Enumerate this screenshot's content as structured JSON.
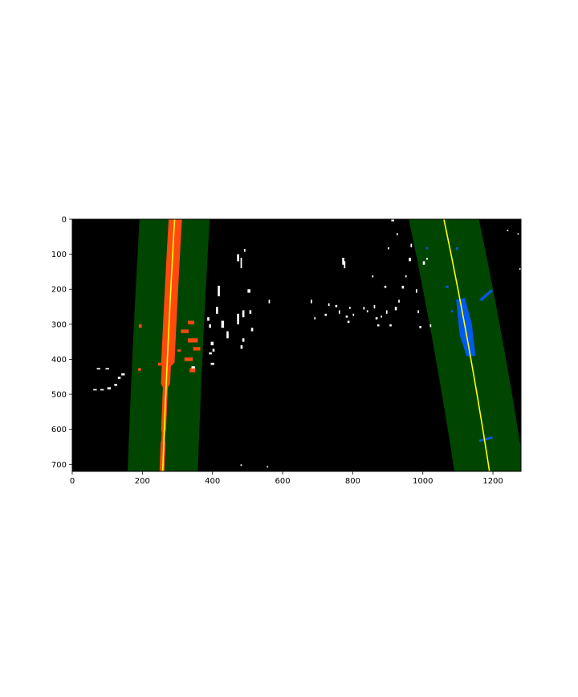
{
  "chart_data": {
    "type": "image",
    "title": "",
    "xlabel": "",
    "ylabel": "",
    "xlim": [
      0,
      1280
    ],
    "ylim": [
      720,
      0
    ],
    "xticks": [
      0,
      200,
      400,
      600,
      800,
      1000,
      1200
    ],
    "yticks": [
      0,
      100,
      200,
      300,
      400,
      500,
      600,
      700
    ],
    "colors": {
      "background": "#000000",
      "search_window": "#004500",
      "left_lane_pixels": "#ff4a0d",
      "right_lane_pixels": "#005aee",
      "fit_line": "#ffff00",
      "other_pixels": "#ffffff"
    },
    "left_lane": {
      "fit_line": [
        [
          292,
          0
        ],
        [
          276,
          300
        ],
        [
          258,
          720
        ]
      ],
      "search_window_margin": 100
    },
    "right_lane": {
      "fit_line": [
        [
          1060,
          0
        ],
        [
          1130,
          360
        ],
        [
          1190,
          720
        ]
      ],
      "search_window_margin": 100
    }
  }
}
